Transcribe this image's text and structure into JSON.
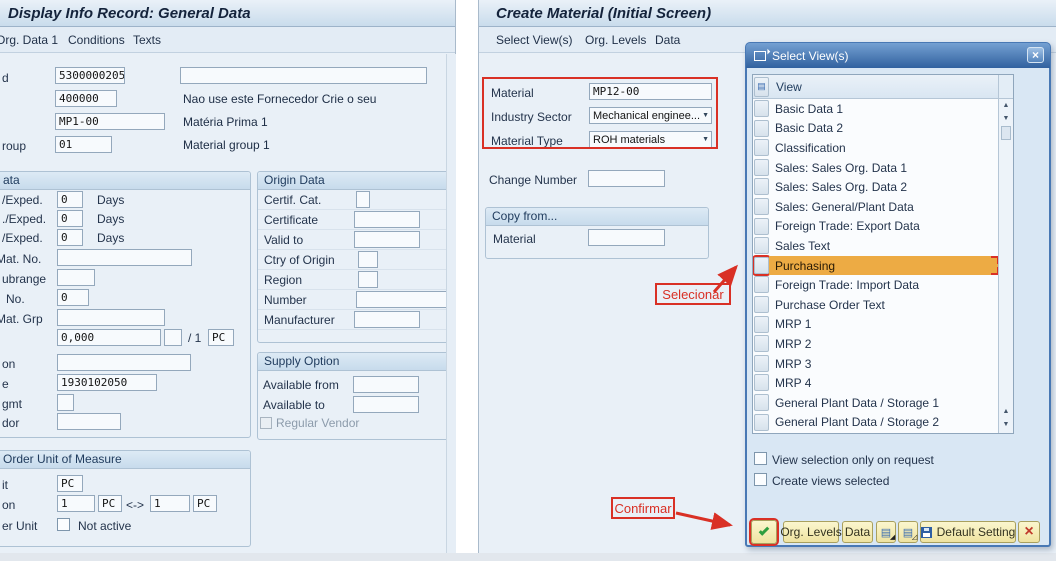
{
  "left_window": {
    "title": "Display Info Record: General Data",
    "menu_items": [
      "Org. Data 1",
      "Conditions",
      "Texts"
    ],
    "header": {
      "info_record_label": "d",
      "info_record_value": "5300000205",
      "vendor_value": "400000",
      "vendor_note": "Nao use este Fornecedor Crie o seu",
      "material_value": "MP1-00",
      "material_note": "Matéria Prima 1",
      "material_group_label": "roup",
      "material_group_value": "01",
      "material_group_note": "Material group 1"
    },
    "data_box": {
      "title": "ata",
      "exped_rows": [
        {
          "label": "/Exped.",
          "value": "0",
          "unit": "Days"
        },
        {
          "label": "./Exped.",
          "value": "0",
          "unit": "Days"
        },
        {
          "label": "/Exped.",
          "value": "0",
          "unit": "Days"
        }
      ],
      "mat_no_label": "Mat. No.",
      "subrange_label": "ubrange",
      "no_label": "No.",
      "no_value": "0",
      "mat_grp_label": "Mat. Grp",
      "qty_value": "0,000",
      "qty_ratio": "/ 1",
      "qty_unit": "PC",
      "reason_label": "on",
      "phone_label": "e",
      "phone_value": "1930102050",
      "sgmt_label": "gmt",
      "vendor_label": "dor"
    },
    "order_unit_box": {
      "title": "Order Unit of Measure",
      "unit_label": "it",
      "unit_value": "PC",
      "conversion_label": "on",
      "conversion_value1": "1",
      "conversion_unit1": "PC",
      "conversion_arrow": "<->",
      "conversion_value2": "1",
      "conversion_unit2": "PC",
      "var_order_unit_label": "er Unit",
      "var_order_unit_status": "Not active"
    },
    "origin_box": {
      "title": "Origin Data",
      "rows": [
        {
          "label": "Certif. Cat.",
          "size": "xs"
        },
        {
          "label": "Certificate",
          "size": "md"
        },
        {
          "label": "Valid to",
          "size": "md"
        },
        {
          "label": "Ctry of Origin",
          "size": "sm"
        },
        {
          "label": "Region",
          "size": "sm"
        },
        {
          "label": "Number",
          "size": "lg"
        },
        {
          "label": "Manufacturer",
          "size": "md"
        }
      ]
    },
    "supply_box": {
      "title": "Supply Option",
      "available_from_label": "Available from",
      "available_to_label": "Available to",
      "regular_vendor_label": "Regular Vendor"
    }
  },
  "right_window": {
    "title": "Create Material (Initial Screen)",
    "menu_items": [
      "Select View(s)",
      "Org. Levels",
      "Data"
    ],
    "fields": {
      "material_label": "Material",
      "material_value": "MP12-00",
      "industry_sector_label": "Industry Sector",
      "industry_sector_value": "Mechanical enginee...",
      "material_type_label": "Material Type",
      "material_type_value": "ROH materials",
      "change_number_label": "Change Number"
    },
    "copy_from_box": {
      "title": "Copy from...",
      "material_label": "Material"
    }
  },
  "dialog": {
    "title": "Select View(s)",
    "list_header": "View",
    "views": [
      "Basic Data 1",
      "Basic Data 2",
      "Classification",
      "Sales: Sales Org. Data 1",
      "Sales: Sales Org. Data 2",
      "Sales: General/Plant Data",
      "Foreign Trade: Export Data",
      "Sales Text",
      "Purchasing",
      "Foreign Trade: Import Data",
      "Purchase Order Text",
      "MRP 1",
      "MRP 2",
      "MRP 3",
      "MRP 4",
      "General Plant Data / Storage 1",
      "General Plant Data / Storage 2"
    ],
    "highlighted_view": "Purchasing",
    "highlight_color": "#EDAB44",
    "checkboxes": [
      "View selection only on request",
      "Create views selected"
    ],
    "buttons": {
      "org_levels": "Org. Levels",
      "data": "Data",
      "default_setting": "Default Setting"
    },
    "icons": [
      "check-icon",
      "select-all-views-icon",
      "deselect-all-views-icon",
      "save-icon",
      "cancel-x-icon",
      "close-x-icon"
    ]
  },
  "annotations": {
    "select_label": "Selecionar",
    "confirm_label": "Confirmar",
    "color": "#D93025"
  }
}
